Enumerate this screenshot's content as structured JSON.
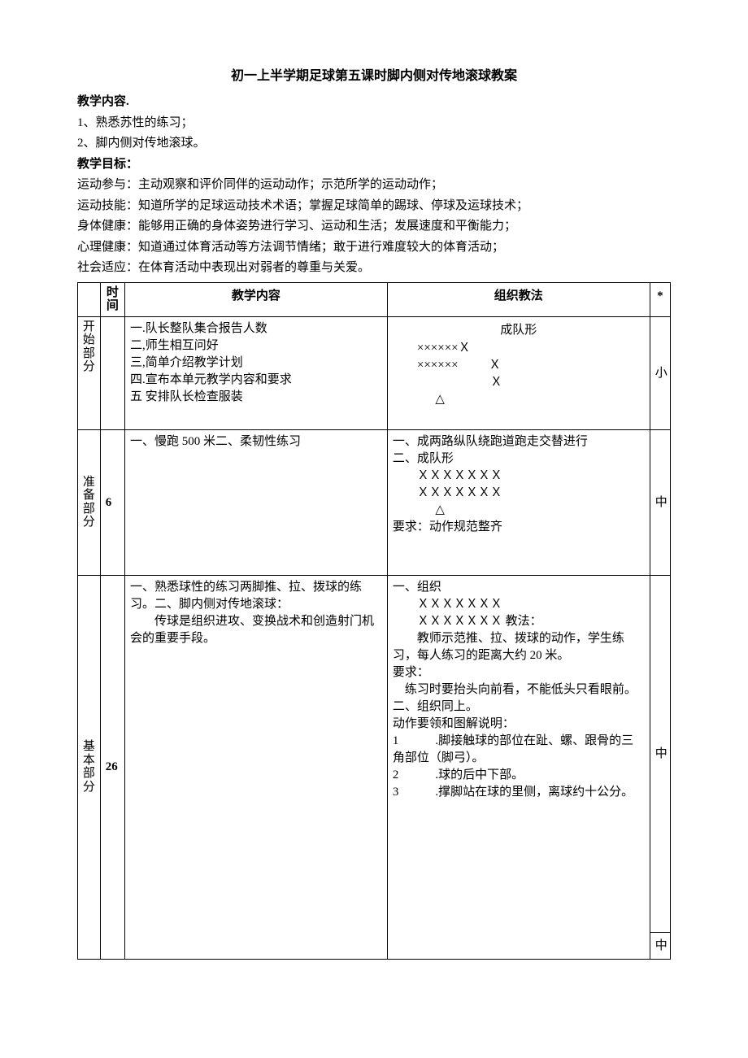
{
  "doc": {
    "title": "初一上半学期足球第五课时脚内侧对传地滚球教案",
    "section_content_label": "教学内容.",
    "content_items": [
      "1、熟悉苏性的练习；",
      "2、脚内侧对传地滚球。"
    ],
    "section_goals_label": "教学目标：",
    "goals": [
      "运动参与：主动观察和评价同伴的运动动作；示范所学的运动动作；",
      "运动技能：知道所学的足球运动技术术语；掌握足球简单的踢球、停球及运球技术；",
      "身体健康：能够用正确的身体姿势进行学习、运动和生活；发展速度和平衡能力；",
      "心理健康：知道通过体育活动等方法调节情绪；敢于进行难度较大的体育活动；",
      "社会适应：在体育活动中表现出对弱者的尊重与关爱。"
    ]
  },
  "table": {
    "headers": {
      "time": "时间",
      "content": "教学内容",
      "method": "组织教法",
      "star": "*"
    },
    "rows": {
      "start": {
        "section_chars": [
          "开",
          "始",
          "部",
          "分"
        ],
        "time": "",
        "content": "一.队长整队集合报告人数\n二,师生相互问好\n三,简单介绍教学计划\n四.宣布本单元教学内容和要求\n五 安排队长检查服装",
        "method_title": "成队形",
        "method_formation": "        ××××××Ｘ\n        ××××××          Ｘ\n                                Ｘ\n              △",
        "star": "小"
      },
      "prep": {
        "section_chars": [
          "准",
          "备",
          "部",
          "分"
        ],
        "time": "6",
        "content": "一、慢跑 500 米二、柔韧性练习",
        "method": "一、成两路纵队绕跑道跑走交替进行\n二、成队形\n        ＸＸＸＸＸＸＸ\n        ＸＸＸＸＸＸＸ\n              △\n要求：动作规范整齐",
        "star": "中"
      },
      "basic": {
        "section_chars": [
          "基",
          "本",
          "部",
          "分"
        ],
        "time": "26",
        "content": "一、熟悉球性的练习两脚推、拉、拨球的练习。二、脚内侧对传地滚球：\n　　传球是组织进攻、变换战术和创造射门机会的重要手段。",
        "method": "一、组织\n　　ＸＸＸＸＸＸＸ\n　　ＸＸＸＸＸＸＸ 教法：\n　　教师示范推、拉、拨球的动作，学生练习，每人练习的距离大约 20 米。\n要求：\n　练习时要抬头向前看，不能低头只看眼前。\n二、组织同上。\n动作要领和图解说明：\n1　　　.脚接触球的部位在趾、螺、跟骨的三角部位（脚弓）。\n2　　　.球的后中下部。\n3　　　.撑脚站在球的里侧，离球约十公分。",
        "star_a": "中",
        "star_b": "中"
      }
    }
  }
}
